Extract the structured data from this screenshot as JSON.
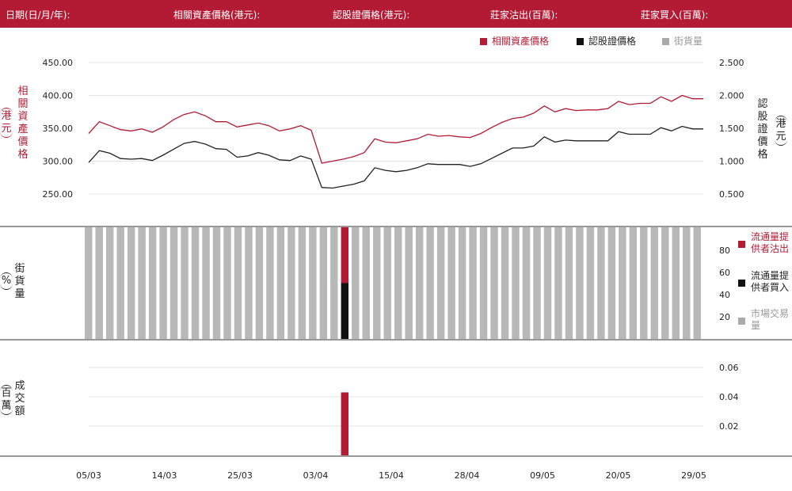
{
  "header": {
    "date_label": "日期(日/月/年):",
    "underlying_label": "相關資產價格(港元):",
    "warrant_label": "認股證價格(港元):",
    "mm_sell_label": "莊家沽出(百萬):",
    "mm_buy_label": "莊家買入(百萬):"
  },
  "legend": {
    "underlying": "相關資產價格",
    "warrant": "認股證價格",
    "outstanding": "街貨量"
  },
  "colors": {
    "brand": "#b31b34",
    "warrant_line": "#222222",
    "outstanding_bar": "#b8b8b8",
    "grid": "#e3e3e3"
  },
  "axis_titles": {
    "left_price": "相關資產價格",
    "left_price_unit": "港元",
    "right_price": "認股證價格",
    "right_price_unit": "港元",
    "outstanding": "街貨量",
    "outstanding_unit": "%",
    "turnover": "成交額",
    "turnover_unit": "百萬"
  },
  "side_legend": {
    "lp_sell": "流通量提供者沽出",
    "lp_buy": "流通量提供者買入",
    "market": "市場交易量"
  },
  "chart_data": [
    {
      "type": "line",
      "x_ticks": [
        "05/03",
        "14/03",
        "25/03",
        "03/04",
        "15/04",
        "28/04",
        "09/05",
        "20/05",
        "29/05"
      ],
      "y_left_ticks": [
        "450.00",
        "400.00",
        "350.00",
        "300.00",
        "250.00"
      ],
      "y_right_ticks": [
        "2.500",
        "2.000",
        "1.500",
        "1.000",
        "0.500"
      ],
      "ylim_left": [
        230,
        470
      ],
      "ylim_right": [
        0.26,
        2.66
      ],
      "series": [
        {
          "name": "相關資產價格",
          "axis": "left",
          "values": [
            342,
            360,
            354,
            348,
            346,
            349,
            344,
            352,
            363,
            371,
            375,
            369,
            360,
            360,
            352,
            355,
            358,
            354,
            346,
            349,
            354,
            347,
            297,
            300,
            303,
            307,
            313,
            334,
            329,
            328,
            331,
            334,
            341,
            338,
            339,
            337,
            336,
            342,
            351,
            359,
            365,
            367,
            373,
            384,
            375,
            380,
            377,
            378,
            378,
            380,
            391,
            386,
            388,
            388,
            398,
            391,
            400,
            395,
            395
          ]
        },
        {
          "name": "認股證價格",
          "axis": "right",
          "values": [
            0.98,
            1.16,
            1.12,
            1.04,
            1.03,
            1.04,
            1.01,
            1.09,
            1.18,
            1.27,
            1.3,
            1.26,
            1.19,
            1.18,
            1.06,
            1.08,
            1.13,
            1.09,
            1.02,
            1.01,
            1.08,
            1.03,
            0.6,
            0.59,
            0.62,
            0.65,
            0.7,
            0.9,
            0.86,
            0.84,
            0.86,
            0.9,
            0.96,
            0.95,
            0.95,
            0.95,
            0.92,
            0.96,
            1.04,
            1.12,
            1.2,
            1.2,
            1.23,
            1.37,
            1.29,
            1.32,
            1.31,
            1.31,
            1.31,
            1.31,
            1.45,
            1.41,
            1.41,
            1.41,
            1.51,
            1.46,
            1.53,
            1.49,
            1.49
          ]
        }
      ]
    },
    {
      "type": "bar",
      "y_ticks": [
        "80",
        "60",
        "40",
        "20"
      ],
      "ylim": [
        0,
        100
      ],
      "bar_count": 58,
      "outstanding_values": [
        100,
        100,
        100,
        100,
        100,
        100,
        100,
        100,
        100,
        100,
        100,
        100,
        100,
        100,
        100,
        100,
        100,
        100,
        100,
        100,
        100,
        100,
        100,
        100,
        100,
        100,
        100,
        100,
        100,
        100,
        100,
        100,
        100,
        100,
        100,
        100,
        100,
        100,
        100,
        100,
        100,
        100,
        100,
        100,
        100,
        100,
        100,
        100,
        100,
        100,
        100,
        100,
        100,
        100,
        100,
        100,
        100,
        100
      ],
      "lp_bar_index": 24,
      "lp_sell": 50,
      "lp_buy": 50
    },
    {
      "type": "bar",
      "y_ticks": [
        "0.06",
        "0.04",
        "0.02"
      ],
      "ylim": [
        0,
        0.08
      ],
      "bar_index": 24,
      "value": 0.043
    }
  ]
}
